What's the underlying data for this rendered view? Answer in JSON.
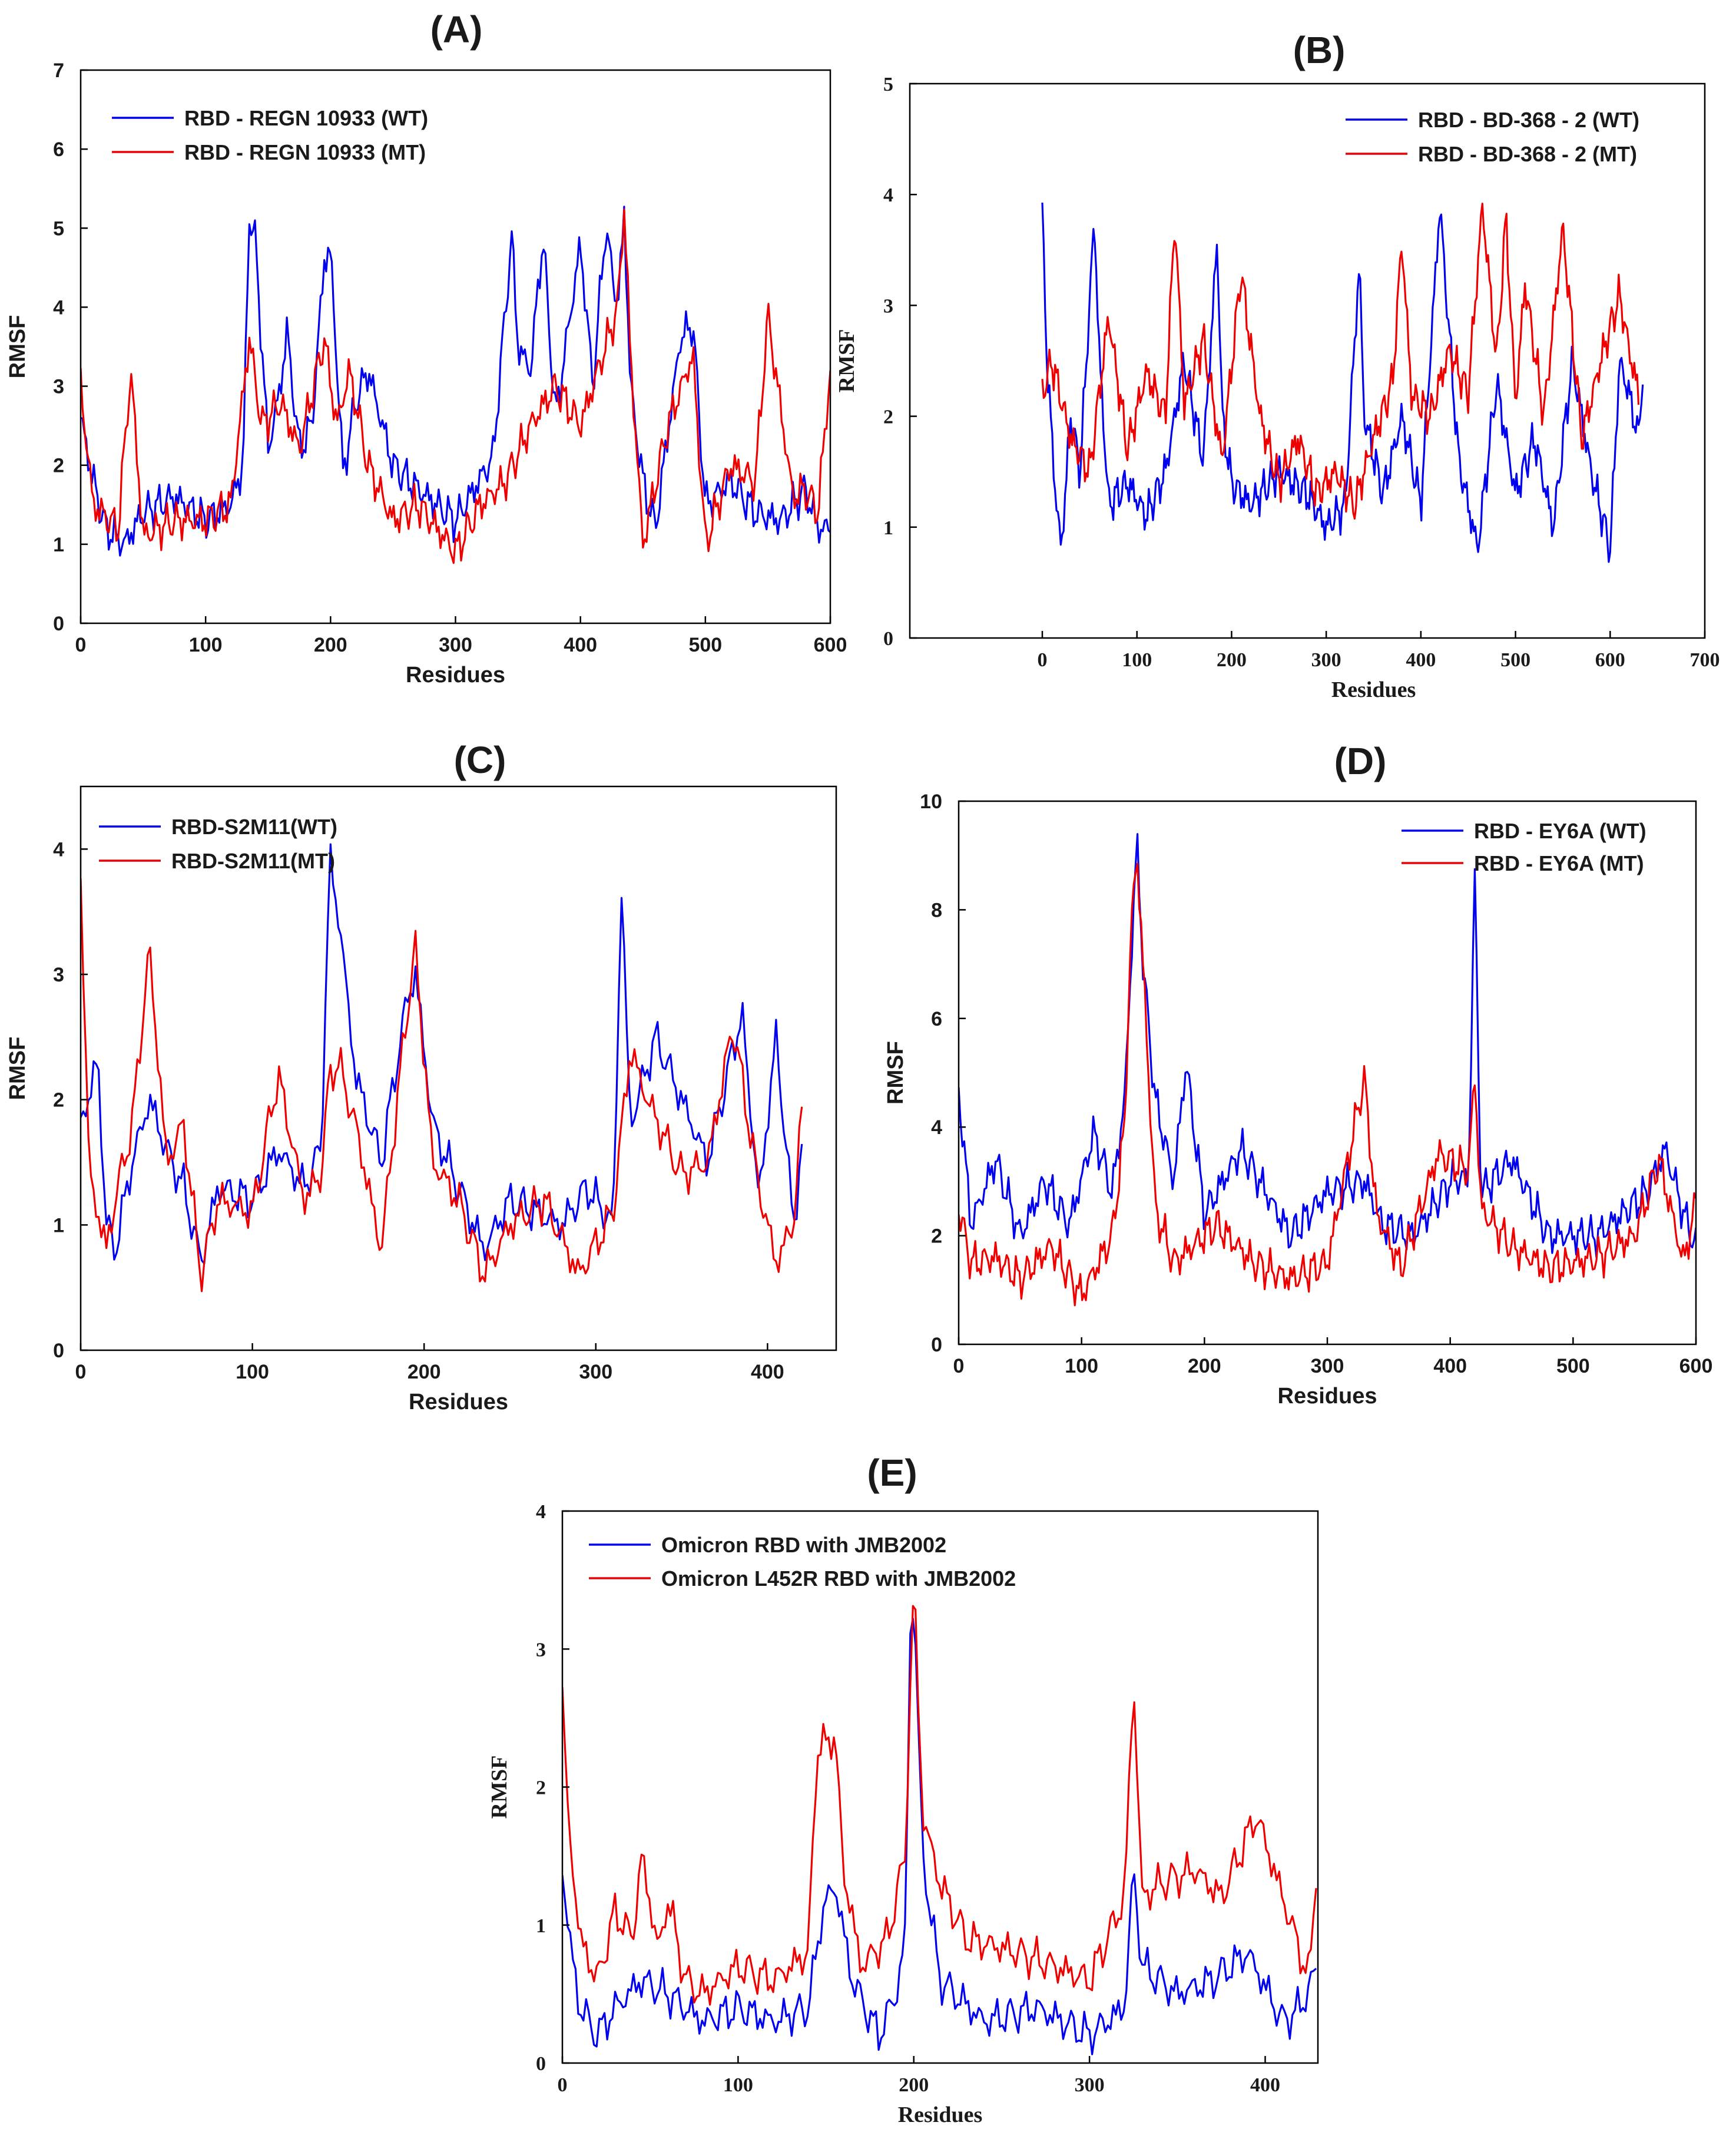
{
  "chart_data": [
    {
      "id": "A",
      "type": "line",
      "title": "(A)",
      "xlabel": "Residues",
      "ylabel": "RMSF",
      "xlim": [
        0,
        600
      ],
      "ylim": [
        0,
        7
      ],
      "xticks": [
        "0",
        "100",
        "200",
        "300",
        "400",
        "500",
        "600"
      ],
      "yticks": [
        "0",
        "1",
        "2",
        "3",
        "4",
        "5",
        "6",
        "7"
      ],
      "legend_position": "top-left",
      "series": [
        {
          "name": "RBD - REGN 10933 (WT)",
          "color": "#0000ee",
          "x": [
            0,
            10,
            20,
            35,
            50,
            75,
            100,
            120,
            130,
            135,
            140,
            150,
            160,
            165,
            175,
            185,
            195,
            200,
            210,
            220,
            230,
            250,
            270,
            300,
            330,
            345,
            350,
            360,
            370,
            380,
            400,
            410,
            420,
            430,
            435,
            440,
            450,
            460,
            480,
            490,
            500,
            520,
            540,
            560,
            580,
            590,
            600
          ],
          "values": [
            2.6,
            1.8,
            1.2,
            1.0,
            1.4,
            1.6,
            1.3,
            1.5,
            2.0,
            5.2,
            4.8,
            2.2,
            3.0,
            3.7,
            2.2,
            2.5,
            4.6,
            4.7,
            1.9,
            2.8,
            3.2,
            2.0,
            1.7,
            1.3,
            2.1,
            4.9,
            3.5,
            3.2,
            4.9,
            2.6,
            4.8,
            3.0,
            5.0,
            4.0,
            5.2,
            3.0,
            1.8,
            1.2,
            3.6,
            3.8,
            1.5,
            1.8,
            1.4,
            1.3,
            1.7,
            1.2,
            1.2
          ]
        },
        {
          "name": "RBD - REGN 10933 (MT)",
          "color": "#ee0000",
          "x": [
            0,
            10,
            30,
            40,
            50,
            75,
            100,
            120,
            135,
            145,
            160,
            175,
            195,
            205,
            215,
            230,
            250,
            270,
            300,
            320,
            340,
            360,
            380,
            400,
            420,
            430,
            435,
            440,
            450,
            470,
            490,
            500,
            520,
            540,
            550,
            570,
            580,
            590,
            600
          ],
          "values": [
            3.0,
            1.5,
            1.2,
            3.2,
            1.1,
            1.3,
            1.3,
            1.5,
            3.6,
            2.5,
            2.8,
            2.2,
            3.6,
            2.5,
            3.2,
            2.0,
            1.3,
            1.5,
            0.9,
            1.5,
            1.8,
            2.5,
            3.0,
            2.5,
            3.5,
            4.0,
            5.3,
            3.4,
            1.0,
            2.5,
            3.4,
            1.0,
            2.0,
            1.8,
            3.9,
            1.6,
            1.7,
            1.4,
            3.2
          ]
        }
      ]
    },
    {
      "id": "B",
      "type": "line",
      "title": "(B)",
      "xlabel": "Residues",
      "ylabel": "RMSF",
      "xlim": [
        -140,
        700
      ],
      "ylim": [
        0,
        5
      ],
      "xticks": [
        "0",
        "100",
        "200",
        "300",
        "400",
        "500",
        "600",
        "700"
      ],
      "yticks": [
        "0",
        "1",
        "2",
        "3",
        "4",
        "5"
      ],
      "legend_position": "top-right",
      "series": [
        {
          "name": "RBD - BD-368 - 2 (WT)",
          "color": "#0000ee",
          "x": [
            0,
            5,
            10,
            15,
            20,
            30,
            40,
            55,
            60,
            70,
            90,
            110,
            130,
            150,
            170,
            185,
            190,
            200,
            220,
            250,
            280,
            300,
            320,
            335,
            340,
            360,
            380,
            400,
            420,
            440,
            460,
            480,
            500,
            520,
            540,
            560,
            580,
            600,
            610,
            620,
            630,
            635
          ],
          "values": [
            3.8,
            2.5,
            1.8,
            1.2,
            0.8,
            2.0,
            1.5,
            3.8,
            2.6,
            1.2,
            1.4,
            1.1,
            1.5,
            2.5,
            1.6,
            3.6,
            2.0,
            1.4,
            1.2,
            1.5,
            1.3,
            1.0,
            1.2,
            3.4,
            2.0,
            1.3,
            2.0,
            1.2,
            3.9,
            1.6,
            0.8,
            2.3,
            1.3,
            1.8,
            1.0,
            2.5,
            1.5,
            0.8,
            2.5,
            2.2,
            1.8,
            2.5
          ]
        },
        {
          "name": "RBD - BD-368 - 2 (MT)",
          "color": "#ee0000",
          "x": [
            0,
            10,
            30,
            50,
            70,
            90,
            110,
            130,
            140,
            150,
            170,
            190,
            210,
            230,
            250,
            270,
            290,
            310,
            330,
            350,
            370,
            380,
            390,
            410,
            430,
            450,
            465,
            480,
            490,
            500,
            510,
            530,
            550,
            570,
            590,
            610,
            620,
            630
          ],
          "values": [
            2.2,
            2.5,
            1.8,
            1.5,
            2.9,
            1.7,
            2.4,
            2.0,
            3.8,
            2.1,
            2.7,
            1.6,
            3.3,
            2.0,
            1.4,
            1.8,
            1.3,
            1.5,
            1.2,
            1.8,
            2.3,
            3.6,
            2.2,
            2.0,
            2.6,
            2.2,
            3.9,
            2.5,
            3.8,
            2.1,
            3.2,
            2.0,
            3.7,
            1.8,
            2.5,
            3.1,
            2.6,
            2.2
          ]
        }
      ]
    },
    {
      "id": "C",
      "type": "line",
      "title": "(C)",
      "xlabel": "Residues",
      "ylabel": "RMSF",
      "xlim": [
        0,
        440
      ],
      "ylim": [
        0,
        4.5
      ],
      "xticks": [
        "0",
        "100",
        "200",
        "300",
        "400"
      ],
      "yticks": [
        "0",
        "1",
        "2",
        "3",
        "4"
      ],
      "legend_position": "top-left",
      "series": [
        {
          "name": "RBD-S2M11(WT)",
          "color": "#0000ee",
          "x": [
            0,
            10,
            15,
            20,
            30,
            40,
            50,
            60,
            70,
            80,
            100,
            115,
            130,
            140,
            145,
            150,
            160,
            175,
            190,
            195,
            205,
            220,
            235,
            250,
            280,
            295,
            310,
            315,
            320,
            335,
            350,
            365,
            385,
            395,
            405,
            415,
            420
          ],
          "values": [
            1.8,
            2.3,
            1.0,
            0.8,
            1.5,
            2.0,
            1.6,
            1.3,
            0.7,
            1.3,
            1.2,
            1.6,
            1.3,
            1.6,
            3.9,
            3.5,
            2.2,
            1.5,
            2.8,
            3.0,
            1.8,
            1.3,
            0.8,
            1.2,
            1.0,
            1.3,
            1.0,
            3.7,
            1.8,
            2.5,
            2.0,
            1.5,
            2.7,
            1.2,
            2.5,
            1.0,
            1.6
          ]
        },
        {
          "name": "RBD-S2M11(MT)",
          "color": "#ee0000",
          "x": [
            0,
            5,
            15,
            20,
            30,
            40,
            50,
            60,
            70,
            80,
            100,
            115,
            130,
            140,
            145,
            150,
            160,
            175,
            190,
            195,
            205,
            220,
            235,
            250,
            270,
            290,
            310,
            320,
            330,
            350,
            365,
            380,
            395,
            405,
            415,
            420
          ],
          "values": [
            3.8,
            1.4,
            0.8,
            1.2,
            1.8,
            3.2,
            1.5,
            1.8,
            0.6,
            1.2,
            1.1,
            2.2,
            1.2,
            1.4,
            2.2,
            2.3,
            1.8,
            0.8,
            2.7,
            3.2,
            1.5,
            1.2,
            0.6,
            1.0,
            1.2,
            0.6,
            1.1,
            2.4,
            2.0,
            1.4,
            1.5,
            2.6,
            1.3,
            0.7,
            1.0,
            1.9
          ]
        }
      ]
    },
    {
      "id": "D",
      "type": "line",
      "title": "(D)",
      "xlabel": "Residues",
      "ylabel": "RMSF",
      "xlim": [
        0,
        600
      ],
      "ylim": [
        0,
        10
      ],
      "xticks": [
        "0",
        "100",
        "200",
        "300",
        "400",
        "500",
        "600"
      ],
      "yticks": [
        "0",
        "2",
        "4",
        "6",
        "8",
        "10"
      ],
      "legend_position": "top-right",
      "series": [
        {
          "name": "RBD - EY6A (WT)",
          "color": "#0000ee",
          "x": [
            0,
            10,
            30,
            50,
            70,
            90,
            110,
            125,
            135,
            145,
            150,
            160,
            175,
            185,
            200,
            230,
            270,
            300,
            330,
            345,
            370,
            400,
            415,
            420,
            425,
            450,
            480,
            520,
            560,
            575,
            590,
            600
          ],
          "values": [
            4.7,
            2.2,
            3.4,
            2.0,
            3.0,
            2.2,
            3.9,
            2.8,
            4.5,
            9.3,
            7.0,
            4.5,
            3.0,
            5.2,
            2.4,
            3.6,
            2.0,
            2.8,
            3.0,
            2.2,
            2.0,
            3.0,
            3.1,
            8.7,
            2.8,
            3.4,
            2.0,
            2.0,
            2.8,
            3.6,
            2.4,
            1.8
          ]
        },
        {
          "name": "RBD - EY6A (MT)",
          "color": "#ee0000",
          "x": [
            0,
            10,
            30,
            50,
            75,
            100,
            125,
            135,
            140,
            145,
            150,
            160,
            175,
            190,
            210,
            240,
            270,
            300,
            330,
            340,
            360,
            390,
            415,
            420,
            425,
            450,
            480,
            520,
            550,
            570,
            590,
            600
          ],
          "values": [
            2.5,
            1.5,
            1.6,
            1.2,
            1.8,
            0.9,
            2.0,
            4.0,
            7.5,
            9.1,
            7.0,
            2.5,
            1.5,
            1.8,
            2.2,
            1.5,
            1.2,
            1.5,
            4.9,
            2.4,
            1.4,
            3.5,
            3.2,
            5.0,
            2.5,
            1.8,
            1.4,
            1.6,
            2.0,
            3.4,
            1.5,
            2.6
          ]
        }
      ]
    },
    {
      "id": "E",
      "type": "line",
      "title": "(E)",
      "xlabel": "Residues",
      "ylabel": "RMSF",
      "xlim": [
        0,
        430
      ],
      "ylim": [
        0,
        4
      ],
      "xticks": [
        "0",
        "100",
        "200",
        "300",
        "400"
      ],
      "yticks": [
        "0",
        "1",
        "2",
        "3",
        "4"
      ],
      "legend_position": "top-left",
      "series": [
        {
          "name": "Omicron RBD with JMB2002",
          "color": "#0000ee",
          "x": [
            0,
            5,
            10,
            20,
            30,
            45,
            60,
            80,
            100,
            120,
            140,
            148,
            155,
            165,
            180,
            190,
            195,
            198,
            200,
            205,
            215,
            240,
            270,
            300,
            320,
            325,
            330,
            350,
            370,
            390,
            410,
            420,
            430
          ],
          "values": [
            1.4,
            0.8,
            0.4,
            0.2,
            0.4,
            0.6,
            0.5,
            0.3,
            0.4,
            0.3,
            0.4,
            1.1,
            1.3,
            0.6,
            0.2,
            0.5,
            0.9,
            3.1,
            3.4,
            1.5,
            0.6,
            0.3,
            0.4,
            0.2,
            0.4,
            1.4,
            0.7,
            0.5,
            0.6,
            0.8,
            0.3,
            0.4,
            0.7
          ]
        },
        {
          "name": "Omicron L452R RBD with JMB2002",
          "color": "#ee0000",
          "x": [
            0,
            3,
            10,
            20,
            30,
            40,
            45,
            55,
            60,
            70,
            80,
            100,
            120,
            140,
            145,
            150,
            155,
            160,
            170,
            185,
            195,
            200,
            205,
            215,
            230,
            260,
            300,
            320,
            325,
            330,
            340,
            360,
            375,
            395,
            410,
            425,
            430
          ],
          "values": [
            2.7,
            1.8,
            0.9,
            0.6,
            1.1,
            0.9,
            1.5,
            0.8,
            1.2,
            0.6,
            0.5,
            0.7,
            0.6,
            0.8,
            2.3,
            2.3,
            2.4,
            1.4,
            0.7,
            0.9,
            1.5,
            3.5,
            1.8,
            1.3,
            0.9,
            0.8,
            0.6,
            1.2,
            2.8,
            1.2,
            1.3,
            1.4,
            1.2,
            1.8,
            1.2,
            0.6,
            1.6
          ]
        }
      ]
    }
  ]
}
